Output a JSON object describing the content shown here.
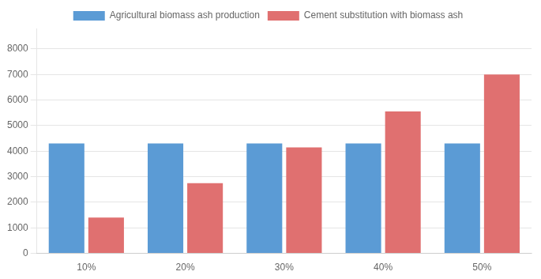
{
  "chart_data": {
    "type": "bar",
    "categories": [
      "10%",
      "20%",
      "30%",
      "40%",
      "50%"
    ],
    "series": [
      {
        "name": "Agricultural biomass ash production",
        "color": "#5B9BD5",
        "values": [
          4300,
          4300,
          4300,
          4300,
          4300
        ]
      },
      {
        "name": "Cement substitution with biomass ash",
        "color": "#E07070",
        "values": [
          1400,
          2750,
          4150,
          5550,
          7000
        ]
      }
    ],
    "ylim": [
      0,
      8800
    ],
    "yticks": [
      0,
      1000,
      2000,
      3000,
      4000,
      5000,
      6000,
      7000,
      8000
    ],
    "grid": "y",
    "legend": "top"
  }
}
